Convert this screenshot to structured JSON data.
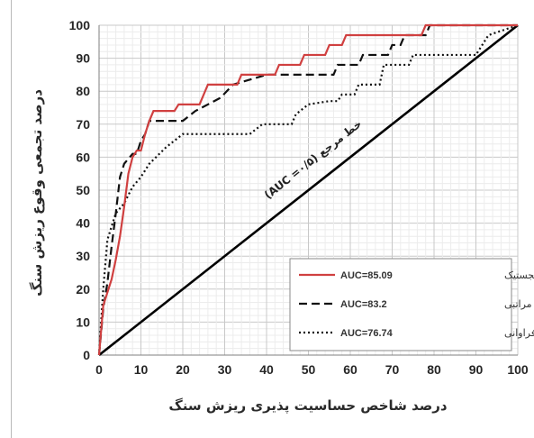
{
  "chart_data": {
    "type": "line",
    "xlabel": "درصد شاخص حساسیت پذیری ریزش سنگ",
    "ylabel": "درصد تجمعی وقوع ریزش سنگ",
    "xlim": [
      0,
      100
    ],
    "ylim": [
      0,
      100
    ],
    "x_ticks": [
      "0",
      "10",
      "20",
      "30",
      "40",
      "50",
      "60",
      "70",
      "80",
      "90",
      "100"
    ],
    "y_ticks": [
      "0",
      "10",
      "20",
      "30",
      "40",
      "50",
      "60",
      "70",
      "80",
      "90",
      "100"
    ],
    "grid": true,
    "legend_position": "bottom-right",
    "reference_line": {
      "label": "خط مرجع (AUC =۰/۵)",
      "x": [
        0,
        100
      ],
      "y": [
        0,
        100
      ],
      "color": "#000000"
    },
    "series": [
      {
        "name": "رگرسیون لجستیک",
        "auc_label": "AUC=85.09",
        "color": "#d04040",
        "style": "solid",
        "x": [
          0,
          1,
          2,
          3,
          4,
          5,
          6,
          7,
          8,
          9,
          10,
          11,
          12,
          13,
          18,
          19,
          24,
          26,
          33,
          34,
          42,
          43,
          48,
          49,
          54,
          55,
          58,
          59,
          77,
          78,
          100
        ],
        "y": [
          0,
          15,
          19,
          23,
          29,
          36,
          45,
          55,
          60,
          62,
          62,
          67,
          71,
          74,
          74,
          76,
          76,
          82,
          82,
          85,
          85,
          88,
          88,
          91,
          91,
          94,
          94,
          97,
          97,
          100,
          100
        ]
      },
      {
        "name": "تحلیل سلسله مراتبی",
        "auc_label": "AUC=83.2",
        "color": "#111111",
        "style": "dashed",
        "x": [
          0,
          1,
          2,
          3,
          4,
          5,
          6,
          8,
          9,
          10,
          11,
          12,
          13,
          20,
          23,
          29,
          32,
          40,
          56,
          57,
          62,
          63,
          69,
          70,
          72,
          73,
          78,
          79,
          100
        ],
        "y": [
          0,
          14,
          22,
          33,
          43,
          54,
          58,
          61,
          61,
          65,
          67,
          71,
          71,
          71,
          74,
          78,
          82,
          85,
          85,
          88,
          88,
          91,
          91,
          94,
          94,
          97,
          97,
          100,
          100
        ]
      },
      {
        "name": "نسبت فراوانی",
        "auc_label": "AUC=76.74",
        "color": "#111111",
        "style": "dotted",
        "x": [
          0,
          1,
          2,
          4,
          6,
          8,
          10,
          12,
          16,
          20,
          36,
          39,
          46,
          47,
          50,
          55,
          57,
          58,
          61,
          62,
          67,
          68,
          74,
          75,
          90,
          93,
          100
        ],
        "y": [
          0,
          20,
          35,
          43,
          46,
          51,
          54,
          58,
          63,
          67,
          67,
          70,
          70,
          73,
          76,
          77,
          77,
          79,
          79,
          82,
          82,
          88,
          88,
          91,
          91,
          97,
          100
        ]
      }
    ]
  }
}
